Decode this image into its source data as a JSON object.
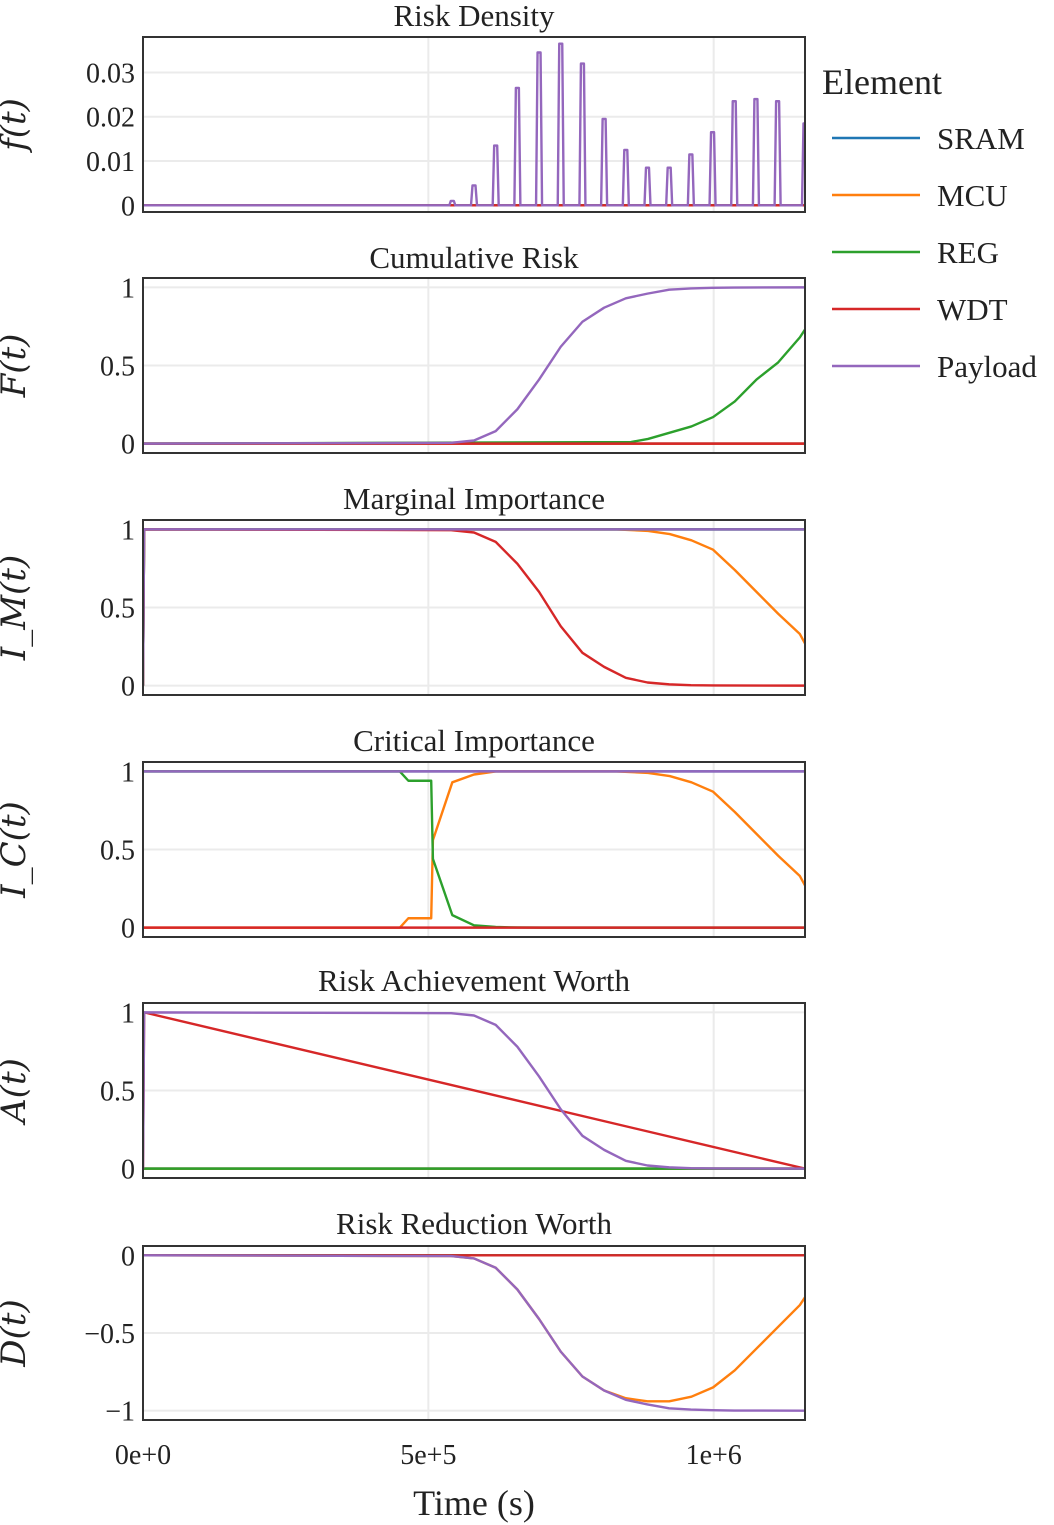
{
  "chart_data": {
    "type": "line",
    "layout": "stacked-subplots",
    "shared_x": true,
    "xlabel": "Time (s)",
    "xlim": [
      0,
      1160000
    ],
    "xticks": [
      {
        "value": 0,
        "label": "0e+0"
      },
      {
        "value": 500000,
        "label": "5e+5"
      },
      {
        "value": 1000000,
        "label": "1e+6"
      }
    ],
    "grid": true,
    "legend": {
      "title": "Element",
      "placement": "right",
      "entries": [
        "SRAM",
        "MCU",
        "REG",
        "WDT",
        "Payload"
      ]
    },
    "colors": {
      "SRAM": "#1f77b4",
      "MCU": "#ff7f0e",
      "REG": "#2ca02c",
      "WDT": "#d62728",
      "Payload": "#9467bd",
      "grid": "#ebebeb",
      "frame": "#333333"
    },
    "panels": [
      {
        "title": "Risk Density",
        "ylabel": "f(t)",
        "ylim": [
          -0.0015,
          0.038
        ],
        "yticks": [
          {
            "value": 0,
            "label": "0"
          },
          {
            "value": 0.01,
            "label": "0.01"
          },
          {
            "value": 0.02,
            "label": "0.02"
          },
          {
            "value": 0.03,
            "label": "0.03"
          }
        ],
        "series": [
          {
            "name": "SRAM",
            "kind": "line",
            "x": [
              0,
              1160000
            ],
            "y": [
              0,
              0
            ]
          },
          {
            "name": "MCU",
            "kind": "line",
            "x": [
              0,
              1160000
            ],
            "y": [
              0,
              0
            ]
          },
          {
            "name": "REG",
            "kind": "line",
            "x": [
              0,
              1160000
            ],
            "y": [
              0,
              0
            ]
          },
          {
            "name": "WDT",
            "kind": "line",
            "x": [
              0,
              1160000
            ],
            "y": [
              0,
              0
            ]
          },
          {
            "name": "Payload",
            "kind": "spikes",
            "x": [
              542000,
              580000,
              618000,
              656000,
              694000,
              732000,
              770000,
              808000,
              846000,
              884000,
              922000,
              960000,
              998000,
              1036000,
              1074000,
              1112000,
              1160000
            ],
            "y": [
              0.001,
              0.0045,
              0.0135,
              0.0265,
              0.0345,
              0.0365,
              0.032,
              0.0195,
              0.0125,
              0.0085,
              0.0085,
              0.0115,
              0.0165,
              0.0235,
              0.024,
              0.0235,
              0.0185
            ]
          }
        ]
      },
      {
        "title": "Cumulative Risk",
        "ylabel": "F(t)",
        "ylim": [
          -0.06,
          1.06
        ],
        "yticks": [
          {
            "value": 0,
            "label": "0"
          },
          {
            "value": 0.5,
            "label": "0.5"
          },
          {
            "value": 1,
            "label": "1"
          }
        ],
        "series": [
          {
            "name": "SRAM",
            "x": [
              0,
              1160000
            ],
            "y": [
              0,
              0
            ]
          },
          {
            "name": "MCU",
            "x": [
              0,
              1160000
            ],
            "y": [
              0,
              0
            ]
          },
          {
            "name": "REG",
            "x": [
              0,
              855000,
              885000,
              923000,
              961000,
              999000,
              1037000,
              1075000,
              1113000,
              1151000,
              1160000
            ],
            "y": [
              0,
              0.01,
              0.03,
              0.07,
              0.11,
              0.17,
              0.27,
              0.41,
              0.52,
              0.68,
              0.73
            ]
          },
          {
            "name": "WDT",
            "x": [
              0,
              1160000
            ],
            "y": [
              0,
              0
            ]
          },
          {
            "name": "Payload",
            "x": [
              0,
              540000,
              580000,
              618000,
              656000,
              694000,
              732000,
              770000,
              808000,
              846000,
              884000,
              922000,
              960000,
              998000,
              1036000,
              1160000
            ],
            "y": [
              0,
              0.005,
              0.02,
              0.08,
              0.22,
              0.41,
              0.62,
              0.78,
              0.87,
              0.93,
              0.96,
              0.985,
              0.993,
              0.997,
              0.999,
              1.0
            ]
          }
        ]
      },
      {
        "title": "Marginal Importance",
        "ylabel": "I_M(t)",
        "ylim": [
          -0.06,
          1.06
        ],
        "yticks": [
          {
            "value": 0,
            "label": "0"
          },
          {
            "value": 0.5,
            "label": "0.5"
          },
          {
            "value": 1,
            "label": "1"
          }
        ],
        "series": [
          {
            "name": "SRAM",
            "x": [
              0,
              2000,
              1160000
            ],
            "y": [
              0,
              1,
              1
            ]
          },
          {
            "name": "MCU",
            "x": [
              0,
              2000,
              830000,
              885000,
              923000,
              961000,
              999000,
              1037000,
              1075000,
              1113000,
              1151000,
              1160000
            ],
            "y": [
              0,
              1,
              1,
              0.99,
              0.97,
              0.93,
              0.87,
              0.74,
              0.6,
              0.46,
              0.33,
              0.27
            ]
          },
          {
            "name": "REG",
            "x": [
              0,
              2000,
              1160000
            ],
            "y": [
              0,
              1,
              1
            ]
          },
          {
            "name": "WDT",
            "x": [
              0,
              2000,
              540000,
              580000,
              618000,
              656000,
              694000,
              732000,
              770000,
              808000,
              846000,
              884000,
              922000,
              960000,
              1000000,
              1160000
            ],
            "y": [
              0,
              1,
              0.995,
              0.98,
              0.92,
              0.78,
              0.6,
              0.38,
              0.21,
              0.12,
              0.05,
              0.02,
              0.008,
              0.003,
              0.001,
              0
            ]
          },
          {
            "name": "Payload",
            "x": [
              0,
              2000,
              1160000
            ],
            "y": [
              0,
              1,
              1
            ]
          }
        ]
      },
      {
        "title": "Critical Importance",
        "ylabel": "I_C(t)",
        "ylim": [
          -0.06,
          1.06
        ],
        "yticks": [
          {
            "value": 0,
            "label": "0"
          },
          {
            "value": 0.5,
            "label": "0.5"
          },
          {
            "value": 1,
            "label": "1"
          }
        ],
        "series": [
          {
            "name": "SRAM",
            "x": [
              0,
              1160000
            ],
            "y": [
              1,
              1
            ]
          },
          {
            "name": "MCU",
            "x": [
              0,
              450000,
              465000,
              505000,
              508000,
              542000,
              580000,
              618000,
              656000,
              830000,
              885000,
              923000,
              961000,
              999000,
              1037000,
              1075000,
              1113000,
              1151000,
              1160000
            ],
            "y": [
              0,
              0,
              0.06,
              0.06,
              0.56,
              0.93,
              0.98,
              1.0,
              1.0,
              1.0,
              0.99,
              0.97,
              0.93,
              0.87,
              0.74,
              0.6,
              0.46,
              0.33,
              0.27
            ]
          },
          {
            "name": "REG",
            "x": [
              0,
              450000,
              465000,
              505000,
              508000,
              542000,
              580000,
              618000,
              656000,
              700000,
              1160000
            ],
            "y": [
              1,
              1,
              0.94,
              0.94,
              0.44,
              0.08,
              0.015,
              0.004,
              0.001,
              0,
              0
            ]
          },
          {
            "name": "WDT",
            "x": [
              0,
              1160000
            ],
            "y": [
              0,
              0
            ]
          },
          {
            "name": "Payload",
            "x": [
              0,
              1160000
            ],
            "y": [
              1,
              1
            ]
          }
        ]
      },
      {
        "title": "Risk Achievement Worth",
        "ylabel": "A(t)",
        "ylim": [
          -0.06,
          1.06
        ],
        "yticks": [
          {
            "value": 0,
            "label": "0"
          },
          {
            "value": 0.5,
            "label": "0.5"
          },
          {
            "value": 1,
            "label": "1"
          }
        ],
        "series": [
          {
            "name": "SRAM",
            "x": [
              0,
              1160000
            ],
            "y": [
              0,
              0
            ]
          },
          {
            "name": "MCU",
            "x": [
              0,
              1160000
            ],
            "y": [
              0,
              0
            ]
          },
          {
            "name": "REG",
            "x": [
              0,
              1160000
            ],
            "y": [
              0,
              0
            ]
          },
          {
            "name": "WDT",
            "x": [
              0,
              2000,
              1160000
            ],
            "y": [
              0,
              1,
              0
            ]
          },
          {
            "name": "Payload",
            "x": [
              0,
              2000,
              540000,
              580000,
              618000,
              656000,
              694000,
              732000,
              770000,
              808000,
              846000,
              884000,
              922000,
              960000,
              1000000,
              1160000
            ],
            "y": [
              0,
              1,
              0.995,
              0.98,
              0.92,
              0.78,
              0.59,
              0.38,
              0.21,
              0.12,
              0.05,
              0.02,
              0.008,
              0.003,
              0.001,
              0
            ]
          }
        ]
      },
      {
        "title": "Risk Reduction Worth",
        "ylabel": "D(t)",
        "ylim": [
          -1.06,
          0.06
        ],
        "yticks": [
          {
            "value": 0,
            "label": "0"
          },
          {
            "value": -0.5,
            "label": "−0.5"
          },
          {
            "value": -1,
            "label": "−1"
          }
        ],
        "series": [
          {
            "name": "SRAM",
            "x": [
              0,
              1160000
            ],
            "y": [
              0,
              0
            ]
          },
          {
            "name": "MCU",
            "x": [
              0,
              540000,
              580000,
              618000,
              656000,
              694000,
              732000,
              770000,
              808000,
              846000,
              884000,
              922000,
              961000,
              999000,
              1037000,
              1075000,
              1113000,
              1151000,
              1160000
            ],
            "y": [
              0,
              -0.005,
              -0.02,
              -0.08,
              -0.22,
              -0.41,
              -0.62,
              -0.78,
              -0.87,
              -0.92,
              -0.94,
              -0.94,
              -0.91,
              -0.85,
              -0.74,
              -0.6,
              -0.46,
              -0.32,
              -0.27
            ]
          },
          {
            "name": "REG",
            "x": [
              0,
              1160000
            ],
            "y": [
              0,
              0
            ]
          },
          {
            "name": "WDT",
            "x": [
              0,
              1160000
            ],
            "y": [
              0,
              0
            ]
          },
          {
            "name": "Payload",
            "x": [
              0,
              540000,
              580000,
              618000,
              656000,
              694000,
              732000,
              770000,
              808000,
              846000,
              884000,
              922000,
              960000,
              998000,
              1036000,
              1160000
            ],
            "y": [
              0,
              -0.005,
              -0.02,
              -0.08,
              -0.22,
              -0.41,
              -0.62,
              -0.78,
              -0.87,
              -0.93,
              -0.96,
              -0.985,
              -0.993,
              -0.997,
              -0.999,
              -1.0
            ]
          }
        ]
      }
    ]
  }
}
